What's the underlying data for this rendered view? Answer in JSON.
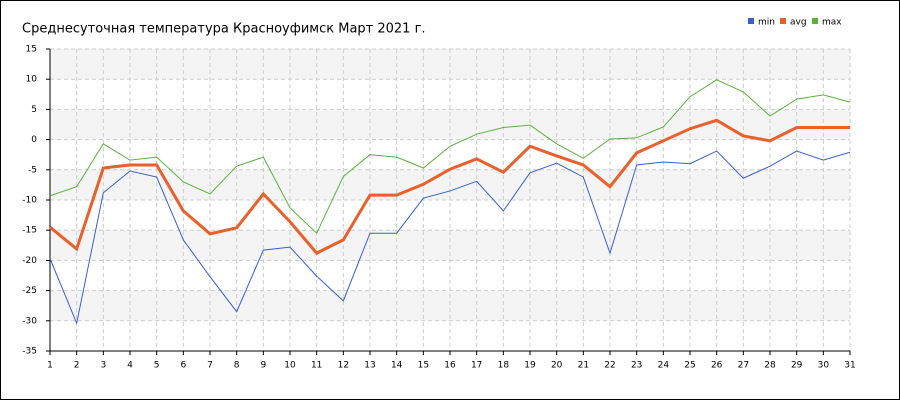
{
  "chart_data": {
    "type": "line",
    "title": "Среднесуточная температура Красноуфимск  Март 2021 г.",
    "x": [
      1,
      2,
      3,
      4,
      5,
      6,
      7,
      8,
      9,
      10,
      11,
      12,
      13,
      14,
      15,
      16,
      17,
      18,
      19,
      20,
      21,
      22,
      23,
      24,
      25,
      26,
      27,
      28,
      29,
      30,
      31
    ],
    "series": [
      {
        "name": "min",
        "color": "#3a5fcd",
        "values": [
          -19.7,
          -30.4,
          -8.8,
          -5.2,
          -6.2,
          -16.6,
          -22.7,
          -28.5,
          -18.3,
          -17.8,
          -22.6,
          -26.7,
          -15.5,
          -15.5,
          -9.7,
          -8.5,
          -6.9,
          -11.8,
          -5.5,
          -3.9,
          -6.2,
          -18.8,
          -4.2,
          -3.7,
          -4.0,
          -1.9,
          -6.4,
          -4.4,
          -1.9,
          -3.4,
          -2.1
        ]
      },
      {
        "name": "avg",
        "color": "#e8602c",
        "values": [
          -14.5,
          -18.1,
          -4.7,
          -4.2,
          -4.2,
          -11.8,
          -15.6,
          -14.6,
          -9.0,
          -13.6,
          -18.8,
          -16.6,
          -9.2,
          -9.2,
          -7.4,
          -4.9,
          -3.2,
          -5.4,
          -1.1,
          -2.7,
          -4.2,
          -7.8,
          -2.2,
          -0.2,
          1.8,
          3.2,
          0.6,
          -0.2,
          2.0,
          2.0,
          2.0
        ]
      },
      {
        "name": "max",
        "color": "#5cb040",
        "values": [
          -9.3,
          -7.8,
          -0.7,
          -3.4,
          -2.9,
          -7.0,
          -9.0,
          -4.4,
          -2.9,
          -11.3,
          -15.5,
          -6.1,
          -2.5,
          -2.9,
          -4.7,
          -1.1,
          0.9,
          2.0,
          2.4,
          -0.7,
          -3.1,
          0.1,
          0.3,
          2.1,
          7.1,
          9.9,
          7.9,
          3.9,
          6.7,
          7.4,
          6.2
        ]
      }
    ],
    "xlim": [
      1,
      31
    ],
    "xticks": [
      1,
      2,
      3,
      4,
      5,
      6,
      7,
      8,
      9,
      10,
      11,
      12,
      13,
      14,
      15,
      16,
      17,
      18,
      19,
      20,
      21,
      22,
      23,
      24,
      25,
      26,
      27,
      28,
      29,
      30,
      31
    ],
    "ylim": [
      -35,
      15
    ],
    "yticks": [
      -35,
      -30,
      -25,
      -20,
      -15,
      -10,
      -5,
      0,
      5,
      10,
      15
    ],
    "grid": true,
    "legend": "top-right"
  }
}
